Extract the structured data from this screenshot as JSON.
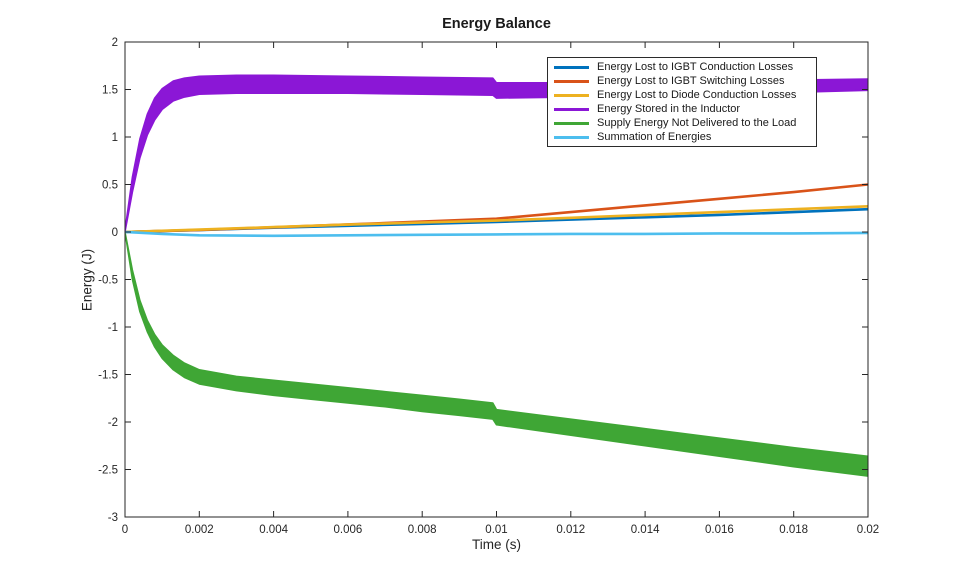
{
  "figure": {
    "background": "#ffffff"
  },
  "chart_data": {
    "type": "line",
    "title": "Energy Balance",
    "xlabel": "Time (s)",
    "ylabel": "Energy (J)",
    "xlim": [
      0,
      0.02
    ],
    "ylim": [
      -3,
      2
    ],
    "grid": false,
    "box": true,
    "tick_direction": "in",
    "axis_color": "#262626",
    "xtick_values": [
      0,
      0.002,
      0.004,
      0.006,
      0.008,
      0.01,
      0.012,
      0.014,
      0.016,
      0.018,
      0.02
    ],
    "xtick_labels": [
      "0",
      "0.002",
      "0.004",
      "0.006",
      "0.008",
      "0.01",
      "0.012",
      "0.014",
      "0.016",
      "0.018",
      "0.02"
    ],
    "ytick_values": [
      2,
      1.5,
      1,
      0.5,
      0,
      -0.5,
      -1,
      -1.5,
      -2,
      -2.5,
      -3
    ],
    "ytick_labels": [
      "2",
      "1.5",
      "1",
      "0.5",
      "0",
      "-0.5",
      "-1",
      "-1.5",
      "-2",
      "-2.5",
      "-3"
    ],
    "legend": {
      "position": "top-right-inside",
      "entries": [
        {
          "label": "Energy Lost to IGBT Conduction Losses",
          "color": "#0072BD"
        },
        {
          "label": "Energy Lost to IGBT Switching Losses",
          "color": "#D95319"
        },
        {
          "label": "Energy Lost to Diode Conduction Losses",
          "color": "#EDB120"
        },
        {
          "label": "Energy Stored in the Inductor",
          "color": "#8B17D6"
        },
        {
          "label": "Supply Energy Not Delivered to the Load",
          "color": "#3FA635"
        },
        {
          "label": "Summation of Energies",
          "color": "#4DBEEE"
        }
      ]
    },
    "series": [
      {
        "name": "Energy Lost to IGBT Conduction Losses",
        "color": "#0072BD",
        "type": "line",
        "points": [
          [
            0,
            0
          ],
          [
            0.002,
            0.02
          ],
          [
            0.004,
            0.045
          ],
          [
            0.006,
            0.065
          ],
          [
            0.008,
            0.085
          ],
          [
            0.01,
            0.105
          ],
          [
            0.012,
            0.13
          ],
          [
            0.014,
            0.155
          ],
          [
            0.016,
            0.18
          ],
          [
            0.018,
            0.21
          ],
          [
            0.02,
            0.24
          ]
        ]
      },
      {
        "name": "Energy Lost to IGBT Switching Losses",
        "color": "#D95319",
        "type": "line",
        "points": [
          [
            0,
            0
          ],
          [
            0.002,
            0.022
          ],
          [
            0.004,
            0.05
          ],
          [
            0.006,
            0.08
          ],
          [
            0.008,
            0.11
          ],
          [
            0.01,
            0.14
          ],
          [
            0.012,
            0.21
          ],
          [
            0.014,
            0.28
          ],
          [
            0.016,
            0.35
          ],
          [
            0.018,
            0.42
          ],
          [
            0.02,
            0.5
          ]
        ]
      },
      {
        "name": "Energy Lost to Diode Conduction Losses",
        "color": "#EDB120",
        "type": "line",
        "points": [
          [
            0,
            0
          ],
          [
            0.002,
            0.025
          ],
          [
            0.004,
            0.052
          ],
          [
            0.006,
            0.078
          ],
          [
            0.008,
            0.1
          ],
          [
            0.01,
            0.12
          ],
          [
            0.012,
            0.15
          ],
          [
            0.014,
            0.18
          ],
          [
            0.016,
            0.21
          ],
          [
            0.018,
            0.24
          ],
          [
            0.02,
            0.27
          ]
        ]
      },
      {
        "name": "Energy Stored in the Inductor",
        "color": "#8B17D6",
        "type": "band",
        "upper": [
          [
            0,
            0.02
          ],
          [
            0.0002,
            0.58
          ],
          [
            0.0004,
            0.98
          ],
          [
            0.0006,
            1.24
          ],
          [
            0.0008,
            1.41
          ],
          [
            0.001,
            1.51
          ],
          [
            0.0013,
            1.59
          ],
          [
            0.0016,
            1.62
          ],
          [
            0.002,
            1.64
          ],
          [
            0.003,
            1.65
          ],
          [
            0.004,
            1.65
          ],
          [
            0.006,
            1.64
          ],
          [
            0.008,
            1.63
          ],
          [
            0.0099,
            1.62
          ],
          [
            0.01,
            1.57
          ],
          [
            0.012,
            1.57
          ],
          [
            0.014,
            1.58
          ],
          [
            0.016,
            1.59
          ],
          [
            0.018,
            1.6
          ],
          [
            0.02,
            1.61
          ]
        ],
        "lower": [
          [
            0,
            0
          ],
          [
            0.0002,
            0.42
          ],
          [
            0.0004,
            0.78
          ],
          [
            0.0006,
            1.02
          ],
          [
            0.0008,
            1.18
          ],
          [
            0.001,
            1.29
          ],
          [
            0.0013,
            1.38
          ],
          [
            0.0016,
            1.42
          ],
          [
            0.002,
            1.45
          ],
          [
            0.003,
            1.46
          ],
          [
            0.004,
            1.46
          ],
          [
            0.006,
            1.46
          ],
          [
            0.008,
            1.45
          ],
          [
            0.0099,
            1.44
          ],
          [
            0.01,
            1.41
          ],
          [
            0.012,
            1.42
          ],
          [
            0.014,
            1.44
          ],
          [
            0.016,
            1.46
          ],
          [
            0.018,
            1.47
          ],
          [
            0.02,
            1.49
          ]
        ]
      },
      {
        "name": "Supply Energy Not Delivered to the Load",
        "color": "#3FA635",
        "type": "band",
        "upper": [
          [
            0,
            0
          ],
          [
            0.0002,
            -0.4
          ],
          [
            0.0004,
            -0.72
          ],
          [
            0.0006,
            -0.93
          ],
          [
            0.0008,
            -1.08
          ],
          [
            0.001,
            -1.19
          ],
          [
            0.0013,
            -1.3
          ],
          [
            0.0016,
            -1.38
          ],
          [
            0.002,
            -1.45
          ],
          [
            0.003,
            -1.52
          ],
          [
            0.004,
            -1.56
          ],
          [
            0.005,
            -1.6
          ],
          [
            0.006,
            -1.64
          ],
          [
            0.007,
            -1.68
          ],
          [
            0.008,
            -1.72
          ],
          [
            0.009,
            -1.76
          ],
          [
            0.0099,
            -1.8
          ],
          [
            0.01,
            -1.87
          ],
          [
            0.012,
            -1.97
          ],
          [
            0.014,
            -2.07
          ],
          [
            0.016,
            -2.17
          ],
          [
            0.018,
            -2.27
          ],
          [
            0.02,
            -2.36
          ]
        ],
        "lower": [
          [
            0,
            0
          ],
          [
            0.0002,
            -0.5
          ],
          [
            0.0004,
            -0.84
          ],
          [
            0.0006,
            -1.05
          ],
          [
            0.0008,
            -1.21
          ],
          [
            0.001,
            -1.33
          ],
          [
            0.0013,
            -1.45
          ],
          [
            0.0016,
            -1.53
          ],
          [
            0.002,
            -1.6
          ],
          [
            0.003,
            -1.67
          ],
          [
            0.004,
            -1.72
          ],
          [
            0.005,
            -1.76
          ],
          [
            0.006,
            -1.8
          ],
          [
            0.007,
            -1.84
          ],
          [
            0.008,
            -1.89
          ],
          [
            0.009,
            -1.93
          ],
          [
            0.0099,
            -1.97
          ],
          [
            0.01,
            -2.03
          ],
          [
            0.012,
            -2.14
          ],
          [
            0.014,
            -2.25
          ],
          [
            0.016,
            -2.36
          ],
          [
            0.018,
            -2.47
          ],
          [
            0.02,
            -2.57
          ]
        ]
      },
      {
        "name": "Summation of Energies",
        "color": "#4DBEEE",
        "type": "line",
        "points": [
          [
            0,
            0
          ],
          [
            0.001,
            -0.02
          ],
          [
            0.002,
            -0.035
          ],
          [
            0.004,
            -0.04
          ],
          [
            0.006,
            -0.035
          ],
          [
            0.008,
            -0.03
          ],
          [
            0.01,
            -0.025
          ],
          [
            0.012,
            -0.02
          ],
          [
            0.014,
            -0.02
          ],
          [
            0.016,
            -0.015
          ],
          [
            0.018,
            -0.015
          ],
          [
            0.02,
            -0.01
          ]
        ]
      }
    ]
  }
}
